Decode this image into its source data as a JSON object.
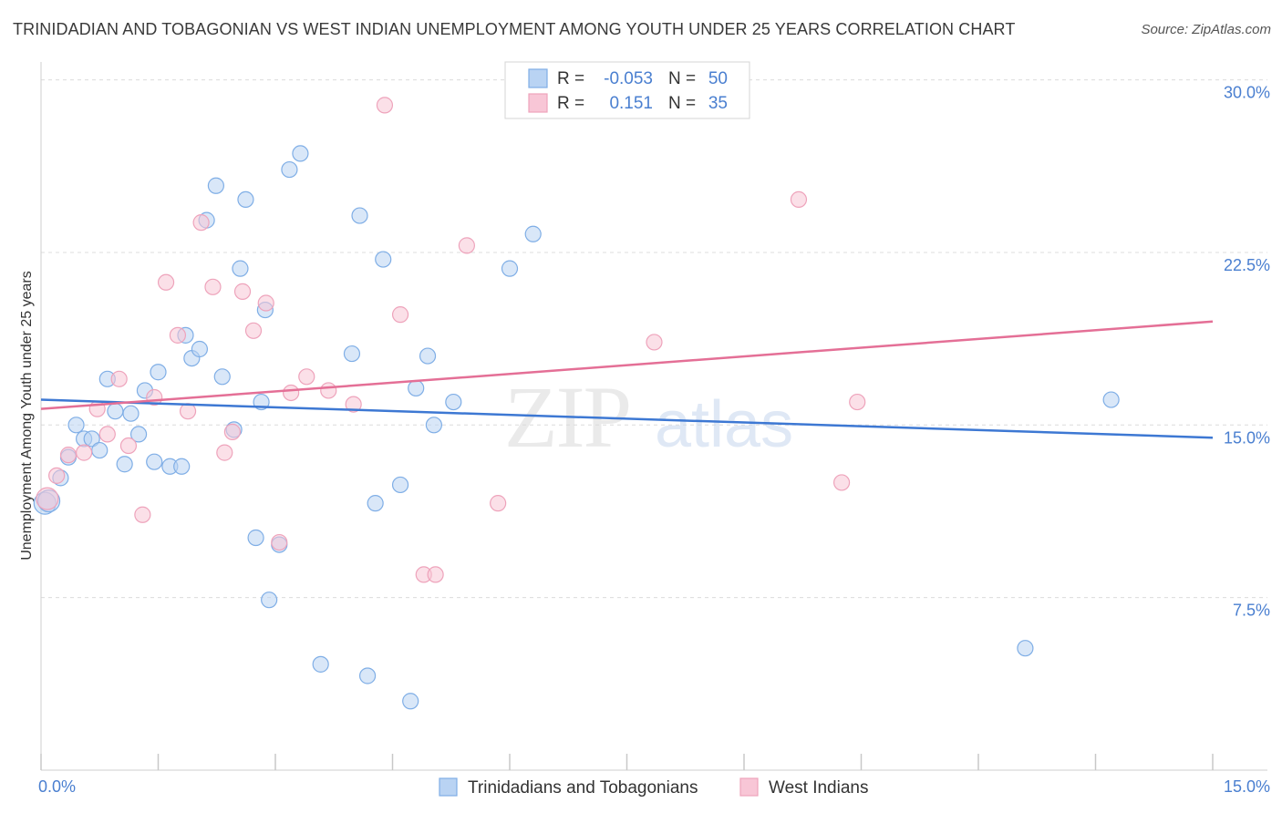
{
  "title": "TRINIDADIAN AND TOBAGONIAN VS WEST INDIAN UNEMPLOYMENT AMONG YOUTH UNDER 25 YEARS CORRELATION CHART",
  "source": "Source: ZipAtlas.com",
  "watermark": {
    "zip": "ZIP",
    "atlas": "atlas"
  },
  "colors": {
    "blue_fill": "#b9d3f3",
    "blue_stroke": "#7faee6",
    "blue_line": "#3d78d3",
    "pink_fill": "#f8c6d6",
    "pink_stroke": "#eea3bb",
    "pink_line": "#e46f96",
    "tick_label": "#4a7fd0",
    "grid": "#dcdcdc"
  },
  "legend_stats": [
    {
      "r_label": "R =",
      "r_value": "-0.053",
      "n_label": "N =",
      "n_value": "50"
    },
    {
      "r_label": "R =",
      "r_value": "0.151",
      "n_label": "N =",
      "n_value": "35"
    }
  ],
  "chart_data": {
    "type": "scatter",
    "xlabel": "",
    "ylabel": "Unemployment Among Youth under 25 years",
    "xlim": [
      0,
      15
    ],
    "ylim": [
      0,
      30.5
    ],
    "x_tick_labels": [
      "0.0%",
      "15.0%"
    ],
    "y_ticks": [
      7.5,
      15.0,
      22.5,
      30.0
    ],
    "y_tick_labels": [
      "7.5%",
      "15.0%",
      "22.5%",
      "30.0%"
    ],
    "legend_position": "bottom",
    "series": [
      {
        "name": "Trinidadians and Tobagonians",
        "color": "blue",
        "trend": [
          [
            0,
            16.1
          ],
          [
            15,
            14.45
          ]
        ],
        "points": [
          [
            0.05,
            11.6
          ],
          [
            0.1,
            11.7
          ],
          [
            0.25,
            12.7
          ],
          [
            0.35,
            13.6
          ],
          [
            0.45,
            15.0
          ],
          [
            0.55,
            14.4
          ],
          [
            0.65,
            14.4
          ],
          [
            0.75,
            13.9
          ],
          [
            0.85,
            17.0
          ],
          [
            0.95,
            15.6
          ],
          [
            1.07,
            13.3
          ],
          [
            1.15,
            15.5
          ],
          [
            1.25,
            14.6
          ],
          [
            1.33,
            16.5
          ],
          [
            1.45,
            13.4
          ],
          [
            1.5,
            17.3
          ],
          [
            1.65,
            13.2
          ],
          [
            1.8,
            13.2
          ],
          [
            1.85,
            18.9
          ],
          [
            1.93,
            17.9
          ],
          [
            2.03,
            18.3
          ],
          [
            2.12,
            23.9
          ],
          [
            2.24,
            25.4
          ],
          [
            2.32,
            17.1
          ],
          [
            2.47,
            14.8
          ],
          [
            2.55,
            21.8
          ],
          [
            2.62,
            24.8
          ],
          [
            2.75,
            10.1
          ],
          [
            2.82,
            16.0
          ],
          [
            2.87,
            20.0
          ],
          [
            2.92,
            7.4
          ],
          [
            3.05,
            9.8
          ],
          [
            3.18,
            26.1
          ],
          [
            3.32,
            26.8
          ],
          [
            3.58,
            4.6
          ],
          [
            3.98,
            18.1
          ],
          [
            4.08,
            24.1
          ],
          [
            4.18,
            4.1
          ],
          [
            4.28,
            11.6
          ],
          [
            4.38,
            22.2
          ],
          [
            4.6,
            12.4
          ],
          [
            4.73,
            3.0
          ],
          [
            4.8,
            16.6
          ],
          [
            4.95,
            18.0
          ],
          [
            5.03,
            15.0
          ],
          [
            5.28,
            16.0
          ],
          [
            6.0,
            21.8
          ],
          [
            6.3,
            23.3
          ],
          [
            12.6,
            5.3
          ],
          [
            13.7,
            16.1
          ]
        ]
      },
      {
        "name": "West Indians",
        "color": "pink",
        "trend": [
          [
            0,
            15.7
          ],
          [
            15,
            19.5
          ]
        ],
        "points": [
          [
            0.08,
            11.8
          ],
          [
            0.2,
            12.8
          ],
          [
            0.35,
            13.7
          ],
          [
            0.55,
            13.8
          ],
          [
            0.72,
            15.7
          ],
          [
            0.85,
            14.6
          ],
          [
            1.0,
            17.0
          ],
          [
            1.12,
            14.1
          ],
          [
            1.3,
            11.1
          ],
          [
            1.45,
            16.2
          ],
          [
            1.6,
            21.2
          ],
          [
            1.75,
            18.9
          ],
          [
            1.88,
            15.6
          ],
          [
            2.05,
            23.8
          ],
          [
            2.2,
            21.0
          ],
          [
            2.35,
            13.8
          ],
          [
            2.45,
            14.7
          ],
          [
            2.58,
            20.8
          ],
          [
            2.72,
            19.1
          ],
          [
            2.88,
            20.3
          ],
          [
            3.05,
            9.9
          ],
          [
            3.2,
            16.4
          ],
          [
            3.4,
            17.1
          ],
          [
            3.68,
            16.5
          ],
          [
            4.0,
            15.9
          ],
          [
            4.4,
            28.9
          ],
          [
            4.6,
            19.8
          ],
          [
            4.9,
            8.5
          ],
          [
            5.05,
            8.5
          ],
          [
            5.45,
            22.8
          ],
          [
            5.85,
            11.6
          ],
          [
            7.85,
            18.6
          ],
          [
            9.7,
            24.8
          ],
          [
            10.25,
            12.5
          ],
          [
            10.45,
            16.0
          ]
        ]
      }
    ]
  }
}
